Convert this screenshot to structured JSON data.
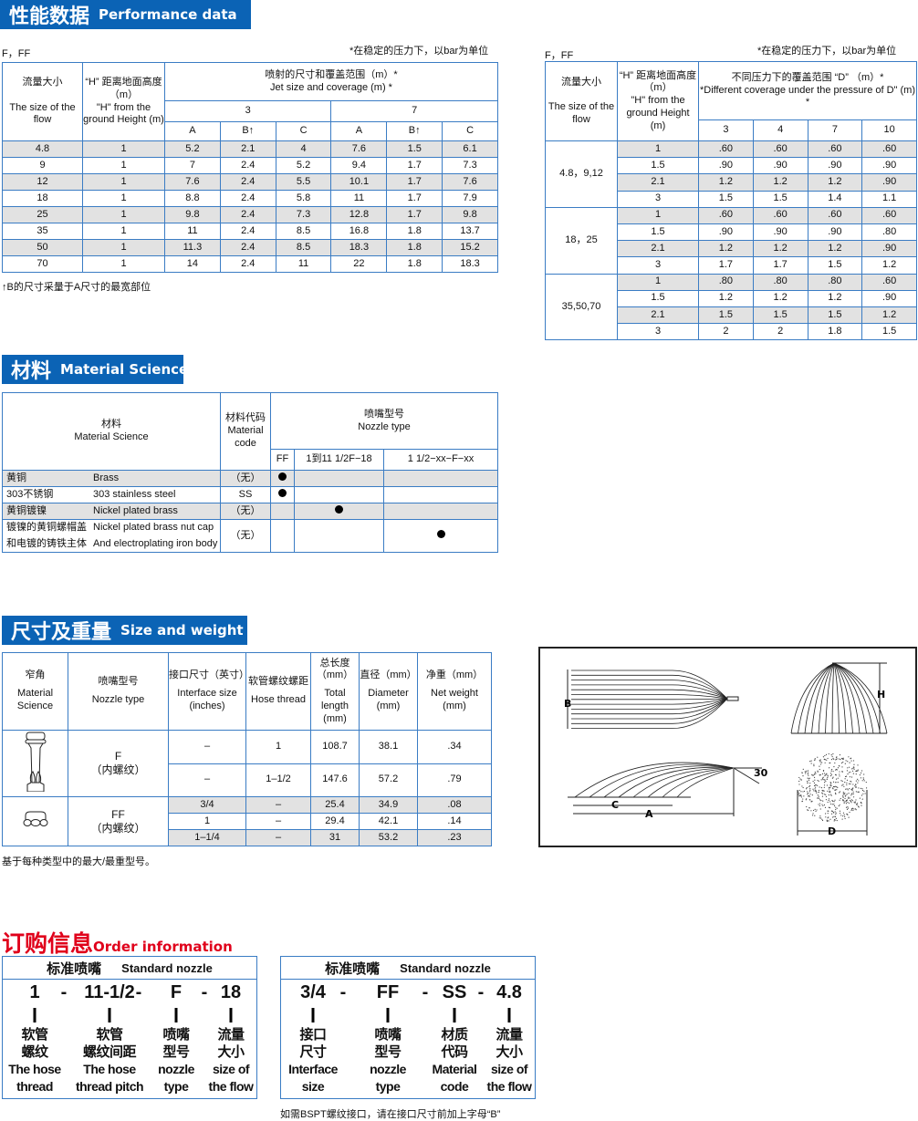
{
  "performance": {
    "banner_cn": "性能数据",
    "banner_en": "Performance data",
    "left": {
      "type_label": "F，FF",
      "note": "*在稳定的压力下，以bar为单位",
      "h_flow_cn": "流量大小",
      "h_flow_en": "The size of the flow",
      "h_height_cn": "“H” 距离地面高度（m）",
      "h_height_en": "\"H\" from the ground Height (m)",
      "h_jet_cn": "喷射的尺寸和覆盖范围（m）*",
      "h_jet_en": "Jet size and coverage (m) *",
      "pressures": [
        "3",
        "7"
      ],
      "sub": [
        "A",
        "B↑",
        "C",
        "A",
        "B↑",
        "C"
      ],
      "rows": [
        [
          "4.8",
          "1",
          "5.2",
          "2.1",
          "4",
          "7.6",
          "1.5",
          "6.1"
        ],
        [
          "9",
          "1",
          "7",
          "2.4",
          "5.2",
          "9.4",
          "1.7",
          "7.3"
        ],
        [
          "12",
          "1",
          "7.6",
          "2.4",
          "5.5",
          "10.1",
          "1.7",
          "7.6"
        ],
        [
          "18",
          "1",
          "8.8",
          "2.4",
          "5.8",
          "11",
          "1.7",
          "7.9"
        ],
        [
          "25",
          "1",
          "9.8",
          "2.4",
          "7.3",
          "12.8",
          "1.7",
          "9.8"
        ],
        [
          "35",
          "1",
          "11",
          "2.4",
          "8.5",
          "16.8",
          "1.8",
          "13.7"
        ],
        [
          "50",
          "1",
          "11.3",
          "2.4",
          "8.5",
          "18.3",
          "1.8",
          "15.2"
        ],
        [
          "70",
          "1",
          "14",
          "2.4",
          "11",
          "22",
          "1.8",
          "18.3"
        ]
      ],
      "footnote": "↑B的尺寸采量于A尺寸的最宽部位"
    },
    "right": {
      "type_label": "F，FF",
      "note": "*在稳定的压力下，以bar为单位",
      "h_flow_cn": "流量大小",
      "h_flow_en": "The size of the flow",
      "h_height_cn": "“H” 距离地面高度（m）",
      "h_height_en": "\"H\" from the ground Height (m)",
      "h_cov_cn": "不同压力下的覆盖范围 “D” （m）*",
      "h_cov_en": "*Different coverage under the pressure of D\" (m) *",
      "pressures": [
        "3",
        "4",
        "7",
        "10"
      ],
      "groups": [
        {
          "flow": "4.8，9,12",
          "rows": [
            [
              "1",
              ".60",
              ".60",
              ".60",
              ".60"
            ],
            [
              "1.5",
              ".90",
              ".90",
              ".90",
              ".90"
            ],
            [
              "2.1",
              "1.2",
              "1.2",
              "1.2",
              ".90"
            ],
            [
              "3",
              "1.5",
              "1.5",
              "1.4",
              "1.1"
            ]
          ]
        },
        {
          "flow": "18，25",
          "rows": [
            [
              "1",
              ".60",
              ".60",
              ".60",
              ".60"
            ],
            [
              "1.5",
              ".90",
              ".90",
              ".90",
              ".80"
            ],
            [
              "2.1",
              "1.2",
              "1.2",
              "1.2",
              ".90"
            ],
            [
              "3",
              "1.7",
              "1.7",
              "1.5",
              "1.2"
            ]
          ]
        },
        {
          "flow": "35,50,70",
          "rows": [
            [
              "1",
              ".80",
              ".80",
              ".80",
              ".60"
            ],
            [
              "1.5",
              "1.2",
              "1.2",
              "1.2",
              ".90"
            ],
            [
              "2.1",
              "1.5",
              "1.5",
              "1.5",
              "1.2"
            ],
            [
              "3",
              "2",
              "2",
              "1.8",
              "1.5"
            ]
          ]
        }
      ]
    }
  },
  "material": {
    "banner_cn": "材料",
    "banner_en": "Material Science",
    "h_mat_cn": "材料",
    "h_mat_en": "Material Science",
    "h_code_cn": "材料代码",
    "h_code_en": "Material code",
    "h_nozzle_cn": "喷嘴型号",
    "h_nozzle_en": "Nozzle type",
    "types": [
      "FF",
      "1到11 1/2F−18",
      "1 1/2−xx−F−xx"
    ],
    "rows": [
      {
        "cn": "黄铜",
        "en": "Brass",
        "code": "（无）",
        "mark": 0
      },
      {
        "cn": "303不锈钢",
        "en": "303 stainless steel",
        "code": "SS",
        "mark": 0
      },
      {
        "cn": "黄铜镀镍",
        "en": "Nickel plated brass",
        "code": "（无）",
        "mark": 1
      },
      {
        "cn": "镀镍的黄铜螺帽盖",
        "en": "Nickel plated brass nut cap",
        "cn2": "和电镀的铸铁主体",
        "en2": "And electroplating iron body",
        "code": "（无）",
        "mark": 2
      }
    ]
  },
  "size": {
    "banner_cn": "尺寸及重量",
    "banner_en": "Size and weight",
    "headers": [
      {
        "cn": "窄角",
        "en": "Material Science"
      },
      {
        "cn": "喷嘴型号",
        "en": "Nozzle type"
      },
      {
        "cn": "接口尺寸（英寸）",
        "en": "Interface size (inches)"
      },
      {
        "cn": "软管螺纹螺距",
        "en": "Hose thread"
      },
      {
        "cn": "总长度（mm）",
        "en": "Total length (mm)"
      },
      {
        "cn": "直径（mm）",
        "en": "Diameter (mm)"
      },
      {
        "cn": "净重（mm）",
        "en": "Net weight (mm)"
      }
    ],
    "groups": [
      {
        "type": "F",
        "type_sub": "（内螺纹）",
        "icon": "nozzle-f-icon",
        "rows": [
          [
            "–",
            "1",
            "108.7",
            "38.1",
            ".34"
          ],
          [
            "–",
            "1–1/2",
            "147.6",
            "57.2",
            ".79"
          ]
        ]
      },
      {
        "type": "FF",
        "type_sub": "（内螺纹）",
        "icon": "nozzle-ff-icon",
        "rows": [
          [
            "3/4",
            "–",
            "25.4",
            "34.9",
            ".08"
          ],
          [
            "1",
            "–",
            "29.4",
            "42.1",
            ".14"
          ],
          [
            "1–1/4",
            "–",
            "31",
            "53.2",
            ".23"
          ]
        ]
      }
    ],
    "note": "基于每种类型中的最大/最重型号。"
  },
  "diagram": {
    "labels": [
      "B",
      "A",
      "C",
      "30",
      "H",
      "D"
    ]
  },
  "order": {
    "title_cn": "订购信息",
    "title_en": "Order information",
    "boxes": [
      {
        "head_cn": "标准喷嘴",
        "head_en": "Standard nozzle",
        "codes": [
          "1",
          "11-1/2",
          "F",
          "18"
        ],
        "labels": [
          [
            "软管",
            "螺纹",
            "The hose",
            "thread"
          ],
          [
            "软管",
            "螺纹间距",
            "The hose",
            "thread pitch"
          ],
          [
            "喷嘴",
            "型号",
            "nozzle",
            "type"
          ],
          [
            "流量",
            "大小",
            "size of",
            "the flow"
          ]
        ]
      },
      {
        "head_cn": "标准喷嘴",
        "head_en": "Standard nozzle",
        "codes": [
          "3/4",
          "FF",
          "SS",
          "4.8"
        ],
        "labels": [
          [
            "接口",
            "尺寸",
            "Interface",
            "size"
          ],
          [
            "喷嘴",
            "型号",
            "nozzle",
            "type"
          ],
          [
            "材质",
            "代码",
            "Material",
            "code"
          ],
          [
            "流量",
            "大小",
            "size of",
            "the flow"
          ]
        ]
      }
    ],
    "separator": "-",
    "note": "如需BSPT螺纹接口，请在接口尺寸前加上字母“B”"
  },
  "colors": {
    "banner": "#0b63b5",
    "border": "#3a7cc4",
    "order_title": "#e0001b",
    "row_shade": "#e2e2e2"
  }
}
